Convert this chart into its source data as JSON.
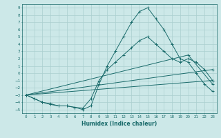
{
  "xlabel": "Humidex (Indice chaleur)",
  "xlim": [
    -0.5,
    23.5
  ],
  "ylim": [
    -5.5,
    9.5
  ],
  "xticks": [
    0,
    1,
    2,
    3,
    4,
    5,
    6,
    7,
    8,
    9,
    10,
    11,
    12,
    13,
    14,
    15,
    16,
    17,
    18,
    19,
    20,
    21,
    22,
    23
  ],
  "yticks": [
    -5,
    -4,
    -3,
    -2,
    -1,
    0,
    1,
    2,
    3,
    4,
    5,
    6,
    7,
    8,
    9
  ],
  "bg_color": "#cce8e8",
  "grid_color": "#aacfcf",
  "line_color": "#1a6b6b",
  "lines": [
    {
      "x": [
        0,
        1,
        2,
        3,
        4,
        5,
        6,
        7,
        8,
        9,
        10,
        11,
        12,
        13,
        14,
        15,
        16,
        17,
        18,
        19,
        20,
        21,
        22,
        23
      ],
      "y": [
        -3,
        -3.5,
        -4,
        -4.3,
        -4.5,
        -4.5,
        -4.7,
        -5,
        -4.5,
        -1.5,
        1,
        3,
        5,
        7,
        8.5,
        9,
        7.5,
        6,
        4,
        2,
        1.5,
        0,
        -1.5,
        -2.5
      ]
    },
    {
      "x": [
        0,
        1,
        2,
        3,
        4,
        5,
        6,
        7,
        8,
        9,
        10,
        11,
        12,
        13,
        14,
        15,
        16,
        17,
        18,
        19,
        20,
        21,
        22,
        23
      ],
      "y": [
        -3,
        -3.5,
        -4,
        -4.2,
        -4.5,
        -4.5,
        -4.7,
        -4.8,
        -3.5,
        -1,
        0.5,
        1.5,
        2.5,
        3.5,
        4.5,
        5,
        4,
        3,
        2,
        1.5,
        2,
        1.5,
        0.5,
        -1
      ]
    },
    {
      "x": [
        0,
        23
      ],
      "y": [
        -3,
        -1
      ]
    },
    {
      "x": [
        0,
        23
      ],
      "y": [
        -3,
        0.5
      ]
    },
    {
      "x": [
        0,
        20,
        23
      ],
      "y": [
        -3,
        2.5,
        -1.5
      ]
    }
  ]
}
